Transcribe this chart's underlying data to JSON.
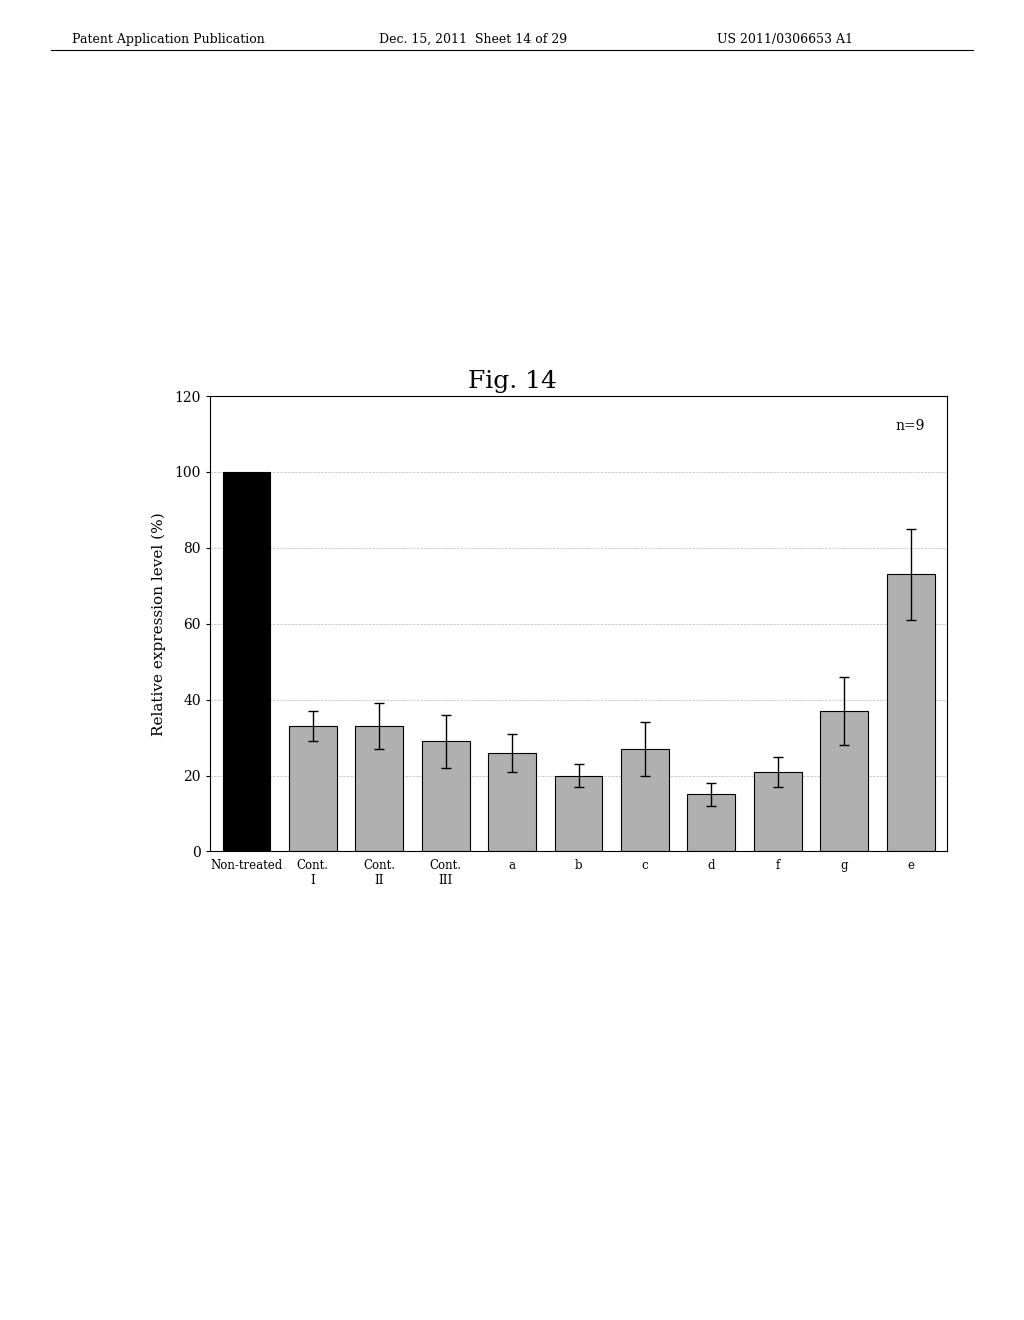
{
  "title": "Fig. 14",
  "ylabel": "Relative expression level (%)",
  "ylim": [
    0,
    120
  ],
  "yticks": [
    0,
    20,
    40,
    60,
    80,
    100,
    120
  ],
  "annotation": "n=9",
  "categories": [
    "Non-treated",
    "Cont.\nI",
    "Cont.\nII",
    "Cont.\nIII",
    "a",
    "b",
    "c",
    "d",
    "f",
    "g",
    "e"
  ],
  "values": [
    100,
    33,
    33,
    29,
    26,
    20,
    27,
    15,
    21,
    37,
    73
  ],
  "errors": [
    0,
    4,
    6,
    7,
    5,
    3,
    7,
    3,
    4,
    9,
    12
  ],
  "bar_colors": [
    "#000000",
    "#888888",
    "#888888",
    "#888888",
    "#888888",
    "#888888",
    "#888888",
    "#888888",
    "#888888",
    "#888888",
    "#888888"
  ],
  "bar_width": 0.72,
  "header_text_left": "Patent Application Publication",
  "header_text_mid": "Dec. 15, 2011  Sheet 14 of 29",
  "header_text_right": "US 2011/0306653 A1",
  "fig_width": 10.24,
  "fig_height": 13.2,
  "dpi": 100
}
